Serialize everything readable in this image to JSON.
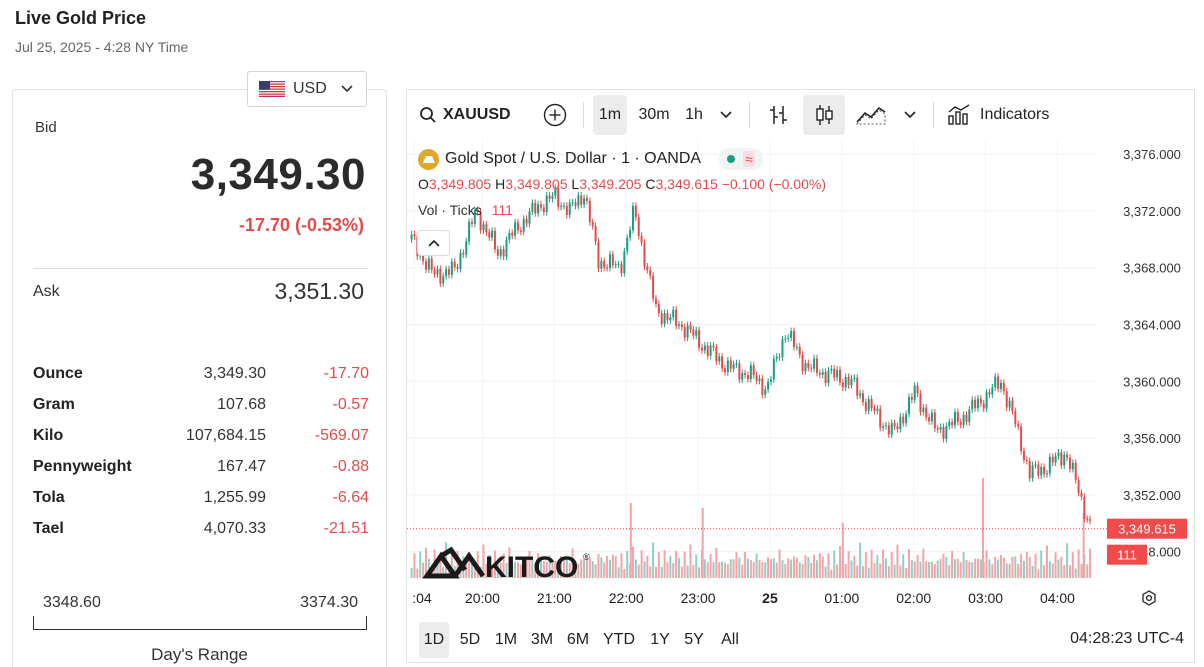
{
  "page": {
    "title": "Live Gold Price",
    "subtitle": "Jul 25, 2025 - 4:28 NY Time"
  },
  "currency_select": {
    "value": "USD",
    "flag_icon": "us-flag-icon"
  },
  "quote": {
    "bid_label": "Bid",
    "bid": "3,349.30",
    "change": "-17.70 (-0.53%)",
    "ask_label": "Ask",
    "ask": "3,351.30"
  },
  "units": [
    {
      "name": "Ounce",
      "value": "3,349.30",
      "change": "-17.70"
    },
    {
      "name": "Gram",
      "value": "107.68",
      "change": "-0.57"
    },
    {
      "name": "Kilo",
      "value": "107,684.15",
      "change": "-569.07"
    },
    {
      "name": "Pennyweight",
      "value": "167.47",
      "change": "-0.88"
    },
    {
      "name": "Tola",
      "value": "1,255.99",
      "change": "-6.64"
    },
    {
      "name": "Tael",
      "value": "4,070.33",
      "change": "-21.51"
    }
  ],
  "day_range": {
    "low": "3348.60",
    "high": "3374.30",
    "label": "Day's Range"
  },
  "toolbar": {
    "symbol": "XAUUSD",
    "intervals": [
      "1m",
      "30m",
      "1h"
    ],
    "active_interval": "1m",
    "indicators_label": "Indicators"
  },
  "legend": {
    "title": "Gold Spot / U.S. Dollar · 1 · OANDA",
    "wave_glyph": "≈",
    "ohlc_o_key": "O",
    "ohlc_o": "3,349.805",
    "ohlc_h_key": "H",
    "ohlc_h": "3,349.805",
    "ohlc_l_key": "L",
    "ohlc_l": "3,349.205",
    "ohlc_c_key": "C",
    "ohlc_c": "3,349.615",
    "ohlc_change": "−0.100 (−0.00%)",
    "vol_label": "Vol · Ticks",
    "vol_value": "111"
  },
  "watermark": "KITCO",
  "chart_data": {
    "type": "line",
    "title": "Gold Spot / U.S. Dollar · 1 · OANDA",
    "x_ticks": [
      ":04",
      "20:00",
      "21:00",
      "22:00",
      "23:00",
      "25",
      "01:00",
      "02:00",
      "03:00",
      "04:00"
    ],
    "y_ticks": [
      "3,376.000",
      "3,372.000",
      "3,368.000",
      "3,364.000",
      "3,360.000",
      "3,356.000",
      "3,352.000",
      "3,348.000"
    ],
    "ylim": [
      3346,
      3377
    ],
    "x_hours": [
      19.0,
      19.3,
      19.6,
      19.9,
      20.2,
      20.5,
      20.8,
      21.0,
      21.2,
      21.4,
      21.6,
      21.9,
      22.1,
      22.4,
      22.8,
      23.1,
      23.4,
      23.7,
      23.95,
      24.2,
      24.5,
      24.8,
      25.1,
      25.4,
      25.7,
      26.0,
      26.3,
      26.6,
      26.9,
      27.2,
      27.4,
      27.6,
      27.85,
      28.1,
      28.3,
      28.45
    ],
    "price": [
      3370.0,
      3367.5,
      3367.8,
      3372.0,
      3369.0,
      3371.0,
      3372.5,
      3373.0,
      3372.0,
      3373.3,
      3368.5,
      3368.0,
      3372.0,
      3365.0,
      3363.8,
      3362.3,
      3361.0,
      3360.5,
      3359.5,
      3363.5,
      3361.0,
      3360.5,
      3360.0,
      3358.0,
      3356.3,
      3359.2,
      3356.5,
      3357.2,
      3358.5,
      3360.0,
      3357.0,
      3353.5,
      3354.0,
      3355.0,
      3352.0,
      3349.6
    ],
    "last_price": "3,349.615",
    "last_volume": "111",
    "volume_profile": [
      30,
      45,
      25,
      50,
      35,
      60,
      40,
      28,
      55,
      38,
      42,
      30,
      65,
      33,
      47,
      29,
      52,
      36,
      44,
      31,
      58,
      39,
      27,
      49,
      34,
      61,
      37,
      43,
      26,
      54,
      41,
      32,
      48,
      35,
      57,
      40
    ],
    "volume_spikes": [
      {
        "x_hour": 22.05,
        "v": 75
      },
      {
        "x_hour": 23.05,
        "v": 70
      },
      {
        "x_hour": 25.0,
        "v": 55
      },
      {
        "x_hour": 26.95,
        "v": 100
      },
      {
        "x_hour": 28.35,
        "v": 65
      }
    ]
  },
  "bottom_bar": {
    "ranges": [
      "1D",
      "5D",
      "1M",
      "3M",
      "6M",
      "YTD",
      "1Y",
      "5Y",
      "All"
    ],
    "active_range": "1D",
    "time": "04:28:23 UTC-4"
  },
  "colors": {
    "down": "#e34b4b",
    "up": "#1a9e82",
    "gold": "#e1a72a",
    "last_price_tag": "#f14a4a"
  }
}
